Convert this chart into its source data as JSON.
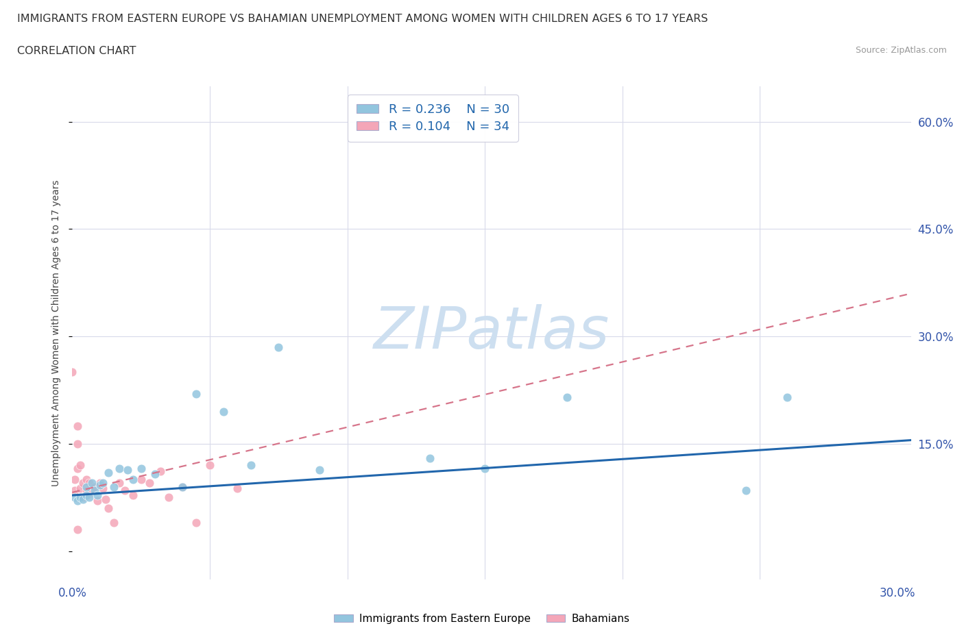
{
  "title": "IMMIGRANTS FROM EASTERN EUROPE VS BAHAMIAN UNEMPLOYMENT AMONG WOMEN WITH CHILDREN AGES 6 TO 17 YEARS",
  "subtitle": "CORRELATION CHART",
  "source": "Source: ZipAtlas.com",
  "ylabel": "Unemployment Among Women with Children Ages 6 to 17 years",
  "xlim": [
    0.0,
    0.305
  ],
  "ylim": [
    -0.04,
    0.65
  ],
  "blue_scatter_color": "#92c5de",
  "pink_scatter_color": "#f4a6b8",
  "blue_line_color": "#2166ac",
  "pink_line_color": "#d6748a",
  "tick_color": "#3355aa",
  "grid_color": "#d8daea",
  "watermark": "ZIPatlas",
  "watermark_color": "#cddff0",
  "legend_label1": "Immigrants from Eastern Europe",
  "legend_label2": "Bahamians",
  "blue_x": [
    0.001,
    0.002,
    0.003,
    0.004,
    0.005,
    0.005,
    0.006,
    0.007,
    0.008,
    0.009,
    0.01,
    0.011,
    0.013,
    0.015,
    0.017,
    0.02,
    0.022,
    0.025,
    0.03,
    0.04,
    0.045,
    0.055,
    0.065,
    0.075,
    0.09,
    0.13,
    0.15,
    0.18,
    0.245,
    0.26
  ],
  "blue_y": [
    0.075,
    0.07,
    0.075,
    0.072,
    0.09,
    0.078,
    0.075,
    0.095,
    0.085,
    0.078,
    0.092,
    0.095,
    0.11,
    0.09,
    0.115,
    0.113,
    0.1,
    0.115,
    0.108,
    0.09,
    0.22,
    0.195,
    0.12,
    0.285,
    0.113,
    0.13,
    0.115,
    0.215,
    0.085,
    0.215
  ],
  "pink_x": [
    0.0,
    0.001,
    0.001,
    0.002,
    0.002,
    0.002,
    0.003,
    0.003,
    0.004,
    0.004,
    0.005,
    0.005,
    0.006,
    0.006,
    0.007,
    0.008,
    0.009,
    0.01,
    0.011,
    0.012,
    0.013,
    0.015,
    0.017,
    0.019,
    0.022,
    0.025,
    0.028,
    0.032,
    0.035,
    0.04,
    0.045,
    0.05,
    0.06,
    0.002
  ],
  "pink_y": [
    0.25,
    0.085,
    0.1,
    0.15,
    0.175,
    0.115,
    0.12,
    0.088,
    0.095,
    0.075,
    0.1,
    0.085,
    0.095,
    0.08,
    0.085,
    0.09,
    0.07,
    0.095,
    0.088,
    0.072,
    0.06,
    0.04,
    0.095,
    0.085,
    0.078,
    0.1,
    0.095,
    0.112,
    0.075,
    0.09,
    0.04,
    0.12,
    0.088,
    0.03
  ],
  "blue_trend_x": [
    0.0,
    0.305
  ],
  "blue_trend_y": [
    0.078,
    0.155
  ],
  "pink_trend_x": [
    0.0,
    0.305
  ],
  "pink_trend_y": [
    0.082,
    0.36
  ]
}
